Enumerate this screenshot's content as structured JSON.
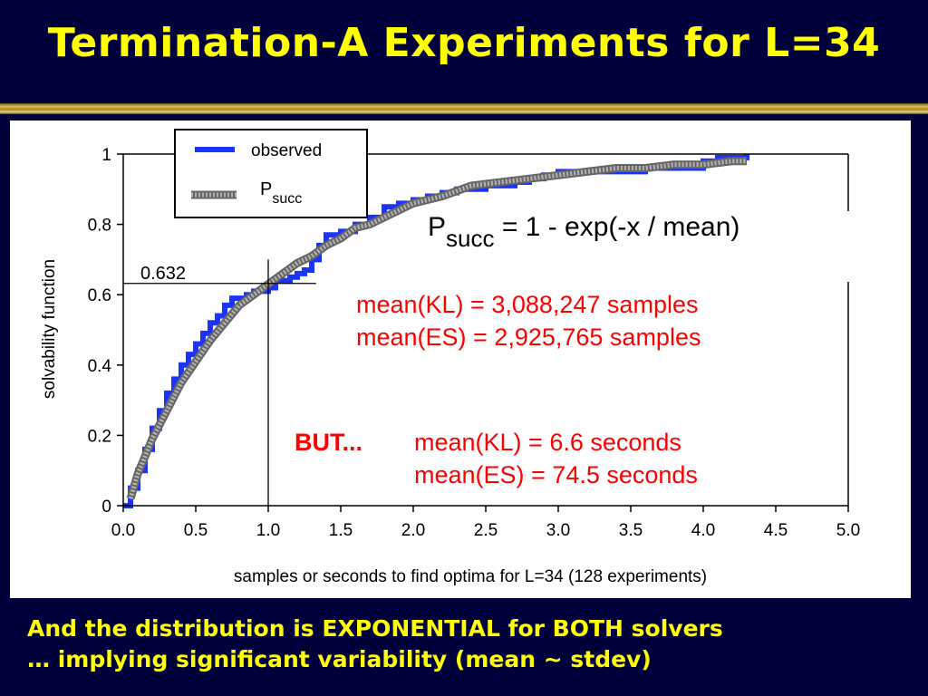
{
  "slide": {
    "title": "Termination-A Experiments for L=34",
    "footer": [
      "And the distribution is EXPONENTIAL for BOTH solvers",
      "… implying significant variability (mean ~ stdev)"
    ]
  },
  "colors": {
    "background": "#00003a",
    "title": "#ffff00",
    "observed": "#1a33ff",
    "psucc": "#8c8c8c",
    "annotation_red": "#ff0000"
  },
  "chart_data": {
    "type": "line",
    "xlabel": "samples  or seconds to find optima  for L=34  (128 experiments)",
    "ylabel": "solvability function",
    "xlim": [
      0,
      5
    ],
    "ylim": [
      0,
      1
    ],
    "xticks": [
      "0.0",
      "0.5",
      "1.0",
      "1.5",
      "2.0",
      "2.5",
      "3.0",
      "3.5",
      "4.0",
      "4.5",
      "5.0"
    ],
    "yticks": [
      "0",
      "0.2",
      "0.4",
      "0.6",
      "0.8",
      "1"
    ],
    "grid": false,
    "legend_position": "top-left",
    "legend": [
      {
        "name": "observed",
        "color": "#1a33ff"
      },
      {
        "name_main": "P",
        "name_sub": "succ",
        "color": "#8c8c8c"
      }
    ],
    "reference": {
      "y": 0.632,
      "x": 1.0,
      "label": "0.632"
    },
    "formula": {
      "main": "P",
      "sub": "succ",
      "rest": " = 1 - exp(-x / mean)"
    },
    "annotations": {
      "means": [
        "mean(KL) = 3,088,247 samples",
        "mean(ES) = 2,925,765 samples"
      ],
      "but_label": "BUT...",
      "times": [
        "mean(KL) = 6.6 seconds",
        "mean(ES) = 74.5 seconds"
      ]
    },
    "series": [
      {
        "name": "observed",
        "x": [
          0.05,
          0.1,
          0.15,
          0.2,
          0.25,
          0.3,
          0.35,
          0.4,
          0.45,
          0.5,
          0.55,
          0.6,
          0.65,
          0.7,
          0.75,
          0.8,
          0.85,
          0.9,
          0.95,
          1.0,
          1.05,
          1.1,
          1.15,
          1.2,
          1.25,
          1.3,
          1.35,
          1.4,
          1.5,
          1.6,
          1.7,
          1.8,
          1.9,
          2.0,
          2.1,
          2.2,
          2.3,
          2.4,
          2.5,
          2.6,
          2.7,
          2.8,
          2.9,
          3.0,
          3.2,
          3.4,
          3.6,
          3.8,
          4.0,
          4.1,
          4.2,
          4.3
        ],
        "values": [
          0.05,
          0.1,
          0.16,
          0.22,
          0.27,
          0.32,
          0.36,
          0.4,
          0.43,
          0.46,
          0.49,
          0.52,
          0.54,
          0.57,
          0.59,
          0.59,
          0.6,
          0.61,
          0.61,
          0.62,
          0.64,
          0.64,
          0.65,
          0.66,
          0.67,
          0.7,
          0.74,
          0.77,
          0.78,
          0.8,
          0.82,
          0.85,
          0.86,
          0.87,
          0.88,
          0.89,
          0.9,
          0.9,
          0.91,
          0.91,
          0.92,
          0.93,
          0.94,
          0.95,
          0.95,
          0.95,
          0.96,
          0.96,
          0.98,
          0.99,
          0.99,
          1.0
        ]
      },
      {
        "name": "P_succ",
        "x": [
          0.05,
          0.1,
          0.2,
          0.3,
          0.4,
          0.5,
          0.6,
          0.7,
          0.8,
          0.9,
          1.0,
          1.1,
          1.2,
          1.3,
          1.4,
          1.5,
          1.6,
          1.7,
          1.8,
          1.9,
          2.0,
          2.2,
          2.4,
          2.6,
          2.8,
          3.0,
          3.2,
          3.4,
          3.6,
          3.8,
          4.0,
          4.2,
          4.3
        ],
        "values": [
          0.02,
          0.09,
          0.19,
          0.27,
          0.35,
          0.41,
          0.47,
          0.52,
          0.57,
          0.6,
          0.63,
          0.66,
          0.69,
          0.71,
          0.74,
          0.76,
          0.79,
          0.8,
          0.82,
          0.84,
          0.86,
          0.88,
          0.91,
          0.92,
          0.93,
          0.94,
          0.95,
          0.96,
          0.96,
          0.97,
          0.97,
          0.98,
          0.98
        ]
      }
    ]
  }
}
